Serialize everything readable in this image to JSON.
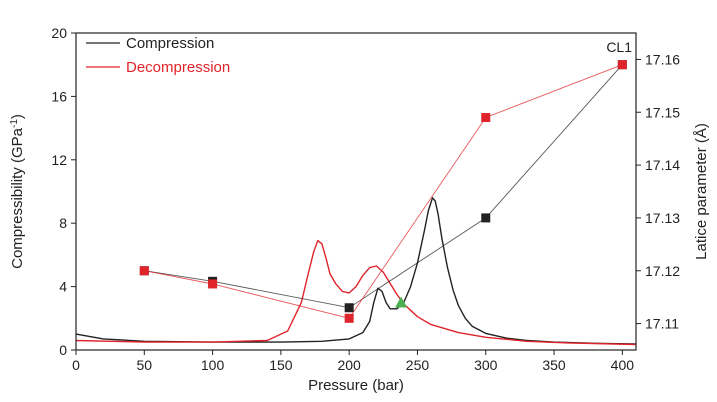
{
  "chart_data": {
    "type": "line",
    "panel_label": "CL1",
    "xlabel": "Pressure (bar)",
    "ylabel_left": "Compressibility (GPa",
    "ylabel_left_sup": "-1",
    "ylabel_left_end": ")",
    "ylabel_right": "Latice parameter (Å)",
    "xlim": [
      0,
      410
    ],
    "ylim_left": [
      0,
      20
    ],
    "ylim_right": [
      17.105,
      17.165
    ],
    "x_ticks": [
      0,
      50,
      100,
      150,
      200,
      250,
      300,
      350,
      400
    ],
    "y_left_ticks": [
      0,
      4,
      8,
      12,
      16,
      20
    ],
    "y_right_ticks": [
      17.11,
      17.12,
      17.13,
      17.14,
      17.15,
      17.16
    ],
    "y_right_tick_labels": [
      "17.11",
      "17.12",
      "17.13",
      "17.14",
      "17.15",
      "17.16"
    ],
    "legend": {
      "position": "top-left",
      "entries": [
        {
          "label": "Compression",
          "color": "#222222"
        },
        {
          "label": "Decompression",
          "color": "#e0242b"
        }
      ]
    },
    "series": [
      {
        "name": "Compression",
        "axis": "left",
        "color": "#222222",
        "x": [
          0,
          20,
          50,
          100,
          150,
          180,
          200,
          210,
          215,
          218,
          221,
          224,
          227,
          230,
          235,
          240,
          245,
          250,
          255,
          258,
          261,
          263,
          265,
          268,
          272,
          276,
          280,
          285,
          290,
          300,
          315,
          330,
          350,
          380,
          410
        ],
        "y": [
          1.0,
          0.7,
          0.55,
          0.5,
          0.5,
          0.55,
          0.7,
          1.1,
          1.8,
          3.0,
          3.9,
          3.7,
          3.0,
          2.6,
          2.6,
          3.0,
          4.0,
          5.5,
          7.5,
          8.8,
          9.6,
          9.4,
          8.6,
          7.0,
          5.2,
          3.8,
          2.8,
          2.0,
          1.5,
          1.05,
          0.75,
          0.6,
          0.5,
          0.42,
          0.38
        ]
      },
      {
        "name": "Decompression",
        "axis": "left",
        "color": "#e0242b",
        "x": [
          0,
          50,
          100,
          140,
          155,
          165,
          170,
          174,
          177,
          180,
          183,
          186,
          190,
          195,
          200,
          205,
          210,
          215,
          220,
          225,
          230,
          235,
          240,
          250,
          260,
          280,
          300,
          330,
          360,
          410
        ],
        "y": [
          0.6,
          0.5,
          0.5,
          0.6,
          1.2,
          3.0,
          4.8,
          6.2,
          6.9,
          6.7,
          5.8,
          4.8,
          4.2,
          3.7,
          3.6,
          4.0,
          4.7,
          5.2,
          5.3,
          4.9,
          4.2,
          3.5,
          2.9,
          2.1,
          1.6,
          1.1,
          0.8,
          0.55,
          0.45,
          0.35
        ]
      },
      {
        "name": "Compression lattice",
        "axis": "right",
        "color": "#222222",
        "marker": "square",
        "x": [
          50,
          100,
          200,
          300,
          400
        ],
        "y": [
          17.12,
          17.118,
          17.113,
          17.13,
          17.159
        ]
      },
      {
        "name": "Decompression lattice",
        "axis": "right",
        "color": "#e0242b",
        "marker": "square",
        "x": [
          50,
          100,
          200,
          300,
          400
        ],
        "y": [
          17.12,
          17.1175,
          17.111,
          17.149,
          17.159
        ]
      },
      {
        "name": "Transition marker",
        "axis": "left",
        "color": "#4caf50",
        "marker": "triangle",
        "x": [
          238
        ],
        "y": [
          3.0
        ]
      }
    ]
  }
}
